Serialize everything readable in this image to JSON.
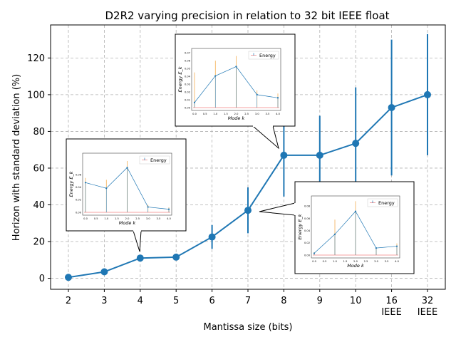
{
  "chart_data": {
    "type": "line",
    "title": "D2R2 varying precision in relation to 32 bit IEEE float",
    "xlabel": "Mantissa size (bits)",
    "ylabel": "Horizon with standard deviation (%)",
    "categories": [
      "2",
      "3",
      "4",
      "5",
      "6",
      "7",
      "8",
      "9",
      "10",
      "16",
      "32"
    ],
    "category_sublabels": [
      "",
      "",
      "",
      "",
      "",
      "",
      "",
      "",
      "",
      "IEEE",
      "IEEE"
    ],
    "values": [
      0.5,
      3.5,
      11,
      11.5,
      22.5,
      37,
      67,
      67,
      73.5,
      93,
      100
    ],
    "std": [
      0,
      0,
      0,
      0,
      6.5,
      12.5,
      22.5,
      21.5,
      30.5,
      37,
      33
    ],
    "ylim": [
      -6,
      138
    ],
    "yticks": [
      0,
      20,
      40,
      60,
      80,
      100,
      120
    ],
    "grid": true,
    "color": "#1f77b4",
    "insets": [
      {
        "anchor_category": "4",
        "ylabel": "Energy E_k",
        "xlabel": "Mode k",
        "legend": [
          "Energy"
        ],
        "xticks": [
          "0.0",
          "0.5",
          "1.0",
          "1.5",
          "2.0",
          "2.5",
          "3.0",
          "3.5",
          "4.0"
        ],
        "yticks": [
          "0.00",
          "0.02",
          "0.04",
          "0.06"
        ],
        "energy": [
          0.0475,
          0.0385,
          0.0715,
          0.0085,
          0.005
        ],
        "orange": [
          0.055,
          0.052,
          0.082,
          0.012,
          0.008
        ],
        "ymax": 0.09
      },
      {
        "anchor_category": "8",
        "ylabel": "Energy E_k",
        "xlabel": "Mode k",
        "legend": [
          "Energy"
        ],
        "xticks": [
          "0.0",
          "0.5",
          "1.0",
          "1.5",
          "2.0",
          "2.5",
          "3.0",
          "3.5",
          "4.0"
        ],
        "yticks": [
          "0.00",
          "0.01",
          "0.02",
          "0.03",
          "0.04",
          "0.05",
          "0.06",
          "0.07"
        ],
        "energy": [
          0.0065,
          0.0405,
          0.0525,
          0.0165,
          0.0125
        ],
        "orange": [
          0.045,
          0.06,
          0.066,
          0.022,
          0.018
        ],
        "ymax": 0.072
      },
      {
        "anchor_category": "7",
        "ylabel": "Energy E_k",
        "xlabel": "Mode k",
        "legend": [
          "Energy"
        ],
        "xticks": [
          "0.0",
          "0.5",
          "1.0",
          "1.5",
          "2.0",
          "2.5",
          "3.0",
          "3.5",
          "4.0"
        ],
        "yticks": [
          "0.00",
          "0.02",
          "0.04",
          "0.06",
          "0.08"
        ],
        "energy": [
          0.003,
          0.034,
          0.0715,
          0.0115,
          0.0145
        ],
        "orange": [
          0.005,
          0.058,
          0.088,
          0.012,
          0.019
        ],
        "ymax": 0.092
      }
    ]
  }
}
